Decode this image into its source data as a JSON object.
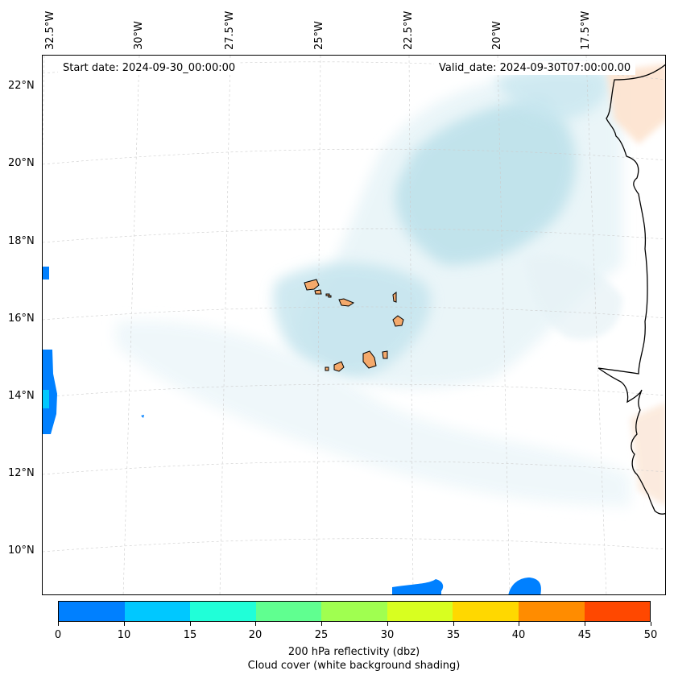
{
  "map": {
    "start_date": "Start date: 2024-09-30_00:00:00",
    "valid_date": "Valid_date: 2024-09-30T07:00:00.00",
    "lon_labels": [
      "32.5°W",
      "30°W",
      "27.5°W",
      "25°W",
      "22.5°W",
      "20°W",
      "17.5°W"
    ],
    "lat_labels": [
      "22°N",
      "20°N",
      "18°N",
      "16°N",
      "14°N",
      "12°N",
      "10°N"
    ],
    "coast_color": "#000000",
    "island_color": "#f4a96b",
    "cloud_color": "#add8e6",
    "grid": "dashed light gray"
  },
  "colorbar": {
    "ticks": [
      "0",
      "10",
      "15",
      "20",
      "25",
      "30",
      "35",
      "40",
      "45",
      "50"
    ],
    "colors": [
      "#0080ff",
      "#00c8ff",
      "#20ffd8",
      "#60ff90",
      "#a0ff50",
      "#d8ff20",
      "#ffd800",
      "#ff8c00",
      "#ff4800"
    ],
    "label_line1": "200 hPa reflectivity (dbz)",
    "label_line2": "Cloud cover (white background shading)"
  }
}
